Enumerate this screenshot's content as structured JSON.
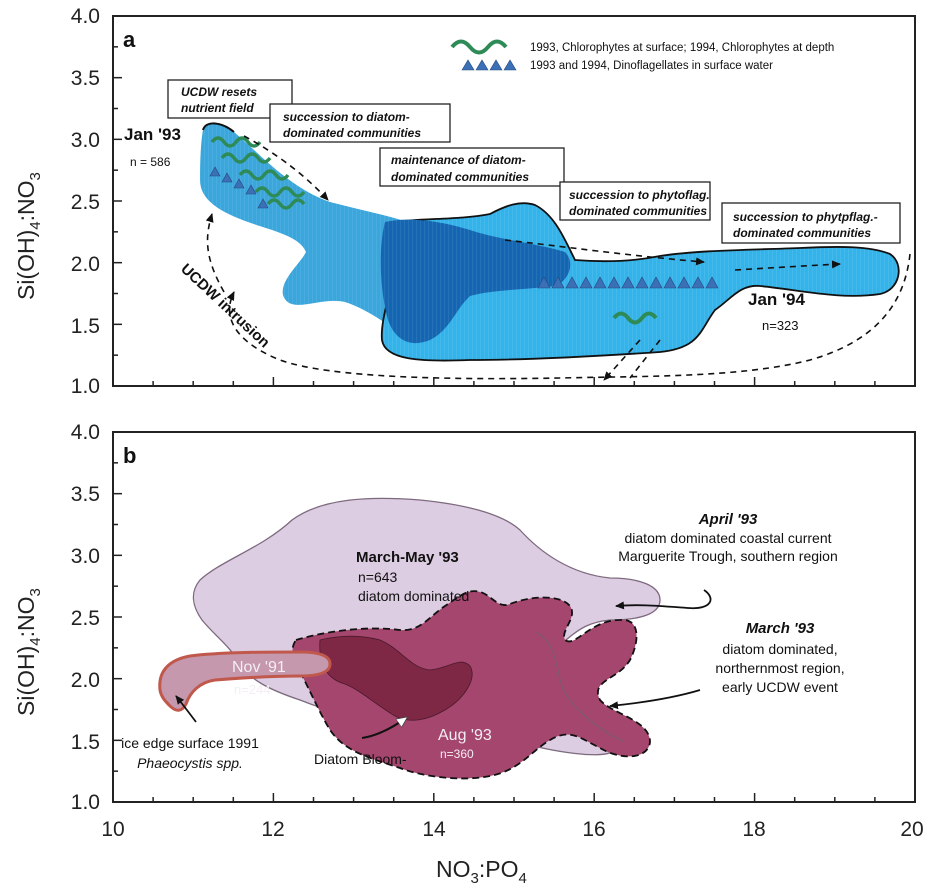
{
  "chart_data": [
    {
      "panel": "a",
      "type": "area",
      "xlim": [
        10,
        20
      ],
      "ylim": [
        1.0,
        4.0
      ],
      "xticks": [
        "10",
        "12",
        "14",
        "16",
        "18",
        "20"
      ],
      "yticks": [
        "1.0",
        "1.5",
        "2.0",
        "2.5",
        "3.0",
        "3.5",
        "4.0"
      ],
      "ylabel_main": "Si(OH)",
      "ylabel_sub1": "4",
      "ylabel_mid": ":NO",
      "ylabel_sub2": "3",
      "legend": [
        {
          "symbol": "wave",
          "color": "#2e8b57",
          "label": "1993, Chlorophytes at surface;  1994, Chlorophytes at depth"
        },
        {
          "symbol": "triangles",
          "color": "#3b6fb6",
          "label": "1993 and 1994, Dinoflagellates in surface water"
        }
      ],
      "labels": {
        "jan93": "Jan '93",
        "n93": "n = 586",
        "jan94": "Jan '94",
        "n94": "n=323",
        "intrusion": "UCDW intrusion"
      },
      "boxes": [
        {
          "id": "b1",
          "lines": [
            "UCDW resets",
            "nutrient field"
          ]
        },
        {
          "id": "b2",
          "lines": [
            "succession to diatom-",
            "dominated communities"
          ]
        },
        {
          "id": "b3",
          "lines": [
            "maintenance of diatom-",
            "dominated communities"
          ]
        },
        {
          "id": "b4",
          "lines": [
            "succession to phytoflag.",
            "dominated communities"
          ]
        },
        {
          "id": "b5",
          "lines": [
            "succession to phytpflag.-",
            "dominated communities"
          ]
        }
      ],
      "regions_color": {
        "light": "#3aa6dc",
        "mid": "#2b8ed0",
        "dark": "#1466b2",
        "bright": "#34b3ea"
      }
    },
    {
      "panel": "b",
      "type": "area",
      "xlim": [
        10,
        20
      ],
      "ylim": [
        1.0,
        4.0
      ],
      "xticks": [
        "10",
        "12",
        "14",
        "16",
        "18",
        "20"
      ],
      "yticks": [
        "1.0",
        "1.5",
        "2.0",
        "2.5",
        "3.0",
        "3.5",
        "4.0"
      ],
      "xlabel_main": "NO",
      "xlabel_sub1": "3",
      "xlabel_mid": ":PO",
      "xlabel_sub2": "4",
      "labels": {
        "marchmay": "March-May '93",
        "n643": "n=643",
        "diatom": "diatom dominated",
        "april_title": "April '93",
        "april_l1": "diatom dominated coastal current",
        "april_l2": "Marguerite Trough, southern region",
        "march_title": "March '93",
        "march_l1": "diatom dominated,",
        "march_l2": "northernmost region,",
        "march_l3": "early UCDW event",
        "nov91": "Nov '91",
        "n244": "n=244",
        "aug93": "Aug '93",
        "n360": "n=360",
        "ice1": "ice edge surface 1991",
        "ice2": "Phaeocystis spp.",
        "bloom": "Diatom Bloom-"
      },
      "regions_color": {
        "lavender": "#ddcde2",
        "maroon": "#a5466e",
        "dark": "#7e2846",
        "nov": "#c698ae",
        "nov_edge": "#c0584c"
      }
    }
  ]
}
